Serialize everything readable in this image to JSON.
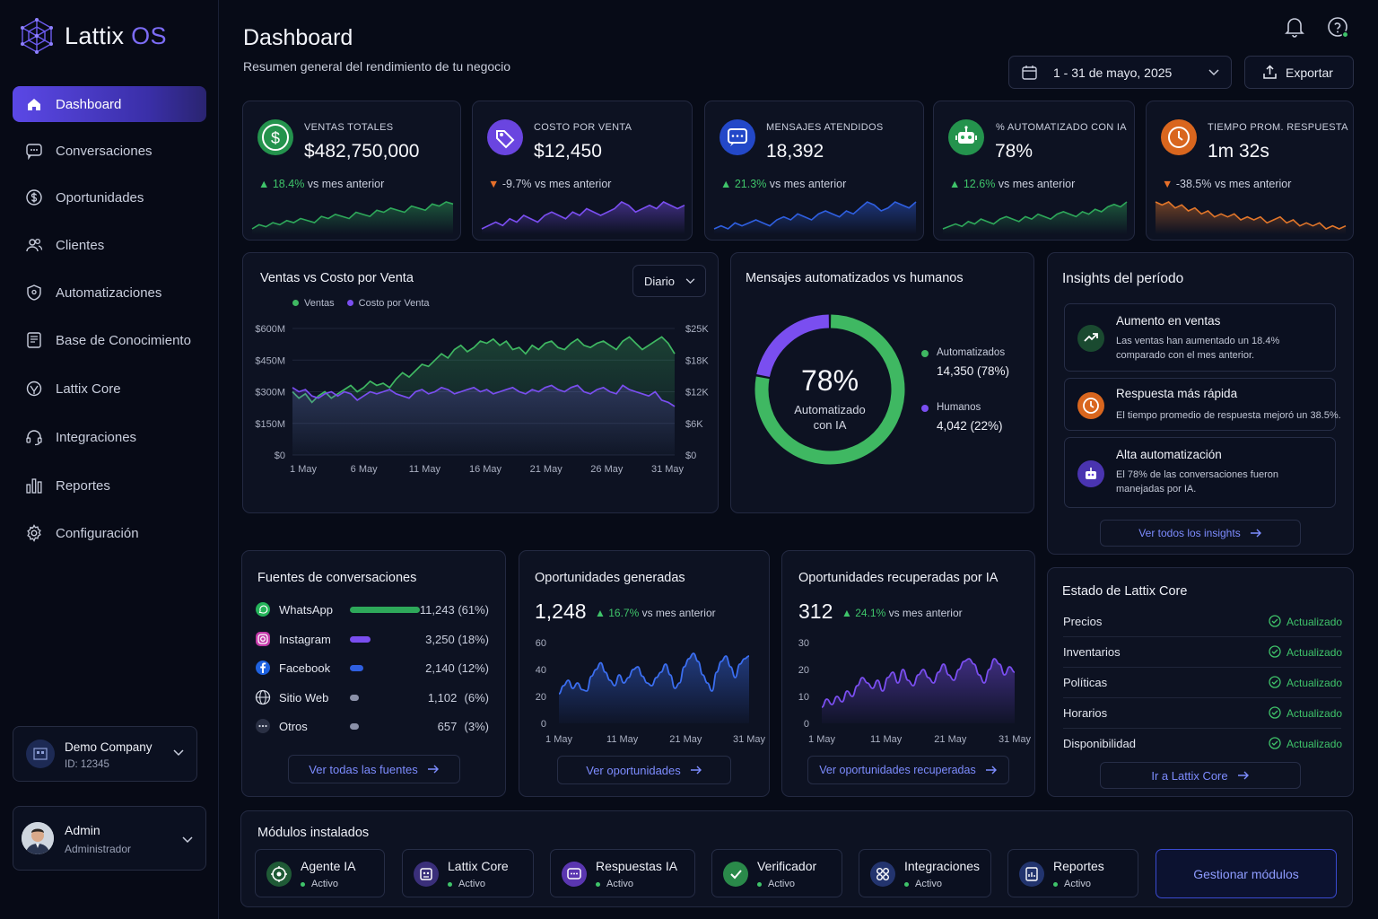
{
  "app": {
    "logo_main": "Lattix",
    "logo_accent": "OS"
  },
  "sidebar": {
    "items": [
      {
        "label": "Dashboard",
        "icon": "home-icon"
      },
      {
        "label": "Conversaciones",
        "icon": "chat-icon"
      },
      {
        "label": "Oportunidades",
        "icon": "dollar-circle-icon"
      },
      {
        "label": "Clientes",
        "icon": "users-icon"
      },
      {
        "label": "Automatizaciones",
        "icon": "shield-icon"
      },
      {
        "label": "Base de Conocimiento",
        "icon": "book-icon"
      },
      {
        "label": "Lattix Core",
        "icon": "core-icon"
      },
      {
        "label": "Integraciones",
        "icon": "headset-icon"
      },
      {
        "label": "Reportes",
        "icon": "bar-chart-icon"
      },
      {
        "label": "Configuración",
        "icon": "gear-icon"
      }
    ],
    "company": {
      "name": "Demo Company",
      "id": "ID: 12345"
    },
    "user": {
      "name": "Admin",
      "role": "Administrador"
    }
  },
  "header": {
    "title": "Dashboard",
    "subtitle": "Resumen general del rendimiento de tu negocio",
    "date_range": "1 - 31 de mayo, 2025",
    "export_label": "Exportar"
  },
  "kpis": [
    {
      "label": "VENTAS TOTALES",
      "value": "$482,750,000",
      "delta": "18.4%",
      "direction": "up",
      "suffix": "vs mes anterior",
      "color": "#2ea85a",
      "spark": [
        3,
        5,
        4,
        6,
        5,
        7,
        6,
        8,
        7,
        6,
        9,
        8,
        10,
        9,
        8,
        11,
        10,
        9,
        12,
        11,
        13,
        12,
        11,
        14,
        13,
        12,
        15,
        14,
        16,
        15
      ]
    },
    {
      "label": "COSTO POR VENTA",
      "value": "$12,450",
      "delta": "-9.7%",
      "direction": "down",
      "suffix": "vs mes anterior",
      "color": "#7a4ef0",
      "spark": [
        4,
        5,
        6,
        5,
        7,
        6,
        8,
        7,
        6,
        8,
        9,
        8,
        7,
        9,
        8,
        10,
        9,
        8,
        9,
        10,
        12,
        11,
        9,
        10,
        11,
        10,
        12,
        11,
        10,
        11
      ]
    },
    {
      "label": "MENSAJES ATENDIDOS",
      "value": "18,392",
      "delta": "21.3%",
      "direction": "up",
      "suffix": "vs mes anterior",
      "color": "#2f5fe0",
      "spark": [
        3,
        4,
        3,
        5,
        4,
        5,
        6,
        5,
        4,
        6,
        7,
        6,
        8,
        7,
        6,
        8,
        9,
        8,
        7,
        9,
        8,
        10,
        12,
        11,
        9,
        10,
        12,
        11,
        10,
        12
      ]
    },
    {
      "label": "% AUTOMATIZADO CON IA",
      "value": "78%",
      "delta": "12.6%",
      "direction": "up",
      "suffix": "vs mes anterior",
      "color": "#2ea85a",
      "spark": [
        3,
        4,
        5,
        4,
        6,
        5,
        7,
        6,
        5,
        7,
        8,
        7,
        6,
        8,
        7,
        9,
        8,
        7,
        9,
        10,
        9,
        8,
        10,
        9,
        11,
        10,
        12,
        13,
        12,
        14
      ]
    },
    {
      "label": "TIEMPO PROM. RESPUESTA",
      "value": "1m 32s",
      "delta": "-38.5%",
      "direction": "down",
      "suffix": "vs mes anterior",
      "color": "#e2762a",
      "spark": [
        14,
        13,
        14,
        12,
        13,
        11,
        12,
        10,
        11,
        9,
        10,
        9,
        10,
        8,
        9,
        8,
        9,
        7,
        8,
        9,
        7,
        8,
        6,
        7,
        6,
        7,
        5,
        6,
        5,
        6
      ]
    }
  ],
  "sales_chart": {
    "title": "Ventas vs Costo por Venta",
    "period": "Diario",
    "legend": [
      "Ventas",
      "Costo por Venta"
    ]
  },
  "messages": {
    "title": "Mensajes automatizados vs humanos",
    "center_value": "78%",
    "center_label_1": "Automatizado",
    "center_label_2": "con IA",
    "items": [
      {
        "label": "Automatizados",
        "value": "14,350 (78%)",
        "color": "#3fb862"
      },
      {
        "label": "Humanos",
        "value": "4,042 (22%)",
        "color": "#7a4ef0"
      }
    ]
  },
  "insights": {
    "title": "Insights del período",
    "items": [
      {
        "title": "Aumento en ventas",
        "text_1": "Las ventas han aumentado un 18.4%",
        "text_2": "comparado con el mes anterior.",
        "icon": "trend-up-icon",
        "color": "#2ea85a"
      },
      {
        "title": "Respuesta más rápida",
        "text_1": "El tiempo promedio de respuesta mejoró un 38.5%.",
        "text_2": "",
        "icon": "clock-icon",
        "color": "#e2762a"
      },
      {
        "title": "Alta automatización",
        "text_1": "El 78% de las conversaciones fueron",
        "text_2": "manejadas por IA.",
        "icon": "robot-icon",
        "color": "#6a45e0"
      }
    ],
    "link": "Ver todos los insights"
  },
  "sources": {
    "title": "Fuentes de conversaciones",
    "items": [
      {
        "name": "WhatsApp",
        "value": "11,243",
        "pct": "(61%)",
        "share": 0.61,
        "color": "#2ea85a",
        "icon": "whatsapp-icon"
      },
      {
        "name": "Instagram",
        "value": "3,250",
        "pct": "(18%)",
        "share": 0.18,
        "color": "#7a4ef0",
        "icon": "instagram-icon"
      },
      {
        "name": "Facebook",
        "value": "2,140",
        "pct": "(12%)",
        "share": 0.12,
        "color": "#2f5fe0",
        "icon": "facebook-icon"
      },
      {
        "name": "Sitio Web",
        "value": "1,102",
        "pct": "(6%)",
        "share": 0.06,
        "color": "#8a90a8",
        "icon": "globe-icon"
      },
      {
        "name": "Otros",
        "value": "657",
        "pct": "(3%)",
        "share": 0.03,
        "color": "#8a90a8",
        "icon": "more-icon"
      }
    ],
    "link": "Ver todas las fuentes"
  },
  "opps": {
    "title": "Oportunidades generadas",
    "value": "1,248",
    "delta": "16.7%",
    "suffix": "vs mes anterior",
    "link": "Ver oportunidades"
  },
  "recovered": {
    "title": "Oportunidades recuperadas por IA",
    "value": "312",
    "delta": "24.1%",
    "suffix": "vs mes anterior",
    "link": "Ver oportunidades recuperadas"
  },
  "core_status": {
    "title": "Estado de Lattix Core",
    "items": [
      {
        "name": "Precios",
        "status": "Actualizado"
      },
      {
        "name": "Inventarios",
        "status": "Actualizado"
      },
      {
        "name": "Políticas",
        "status": "Actualizado"
      },
      {
        "name": "Horarios",
        "status": "Actualizado"
      },
      {
        "name": "Disponibilidad",
        "status": "Actualizado"
      }
    ],
    "link": "Ir a Lattix Core"
  },
  "modules": {
    "title": "Módulos instalados",
    "items": [
      {
        "name": "Agente IA",
        "status": "Activo",
        "icon": "brain-icon",
        "color": "#1f5a36"
      },
      {
        "name": "Lattix Core",
        "status": "Activo",
        "icon": "cpu-icon",
        "color": "#3a2f7a"
      },
      {
        "name": "Respuestas IA",
        "status": "Activo",
        "icon": "message-icon",
        "color": "#5a36b0"
      },
      {
        "name": "Verificador",
        "status": "Activo",
        "icon": "check-icon",
        "color": "#2a8a4a"
      },
      {
        "name": "Integraciones",
        "status": "Activo",
        "icon": "grid-icon",
        "color": "#23346e"
      },
      {
        "name": "Reportes",
        "status": "Activo",
        "icon": "report-icon",
        "color": "#22346e"
      }
    ],
    "manage_label": "Gestionar módulos"
  },
  "chart_data": [
    {
      "type": "line",
      "title": "Ventas vs Costo por Venta",
      "x_ticks": [
        "1 May",
        "6 May",
        "11 May",
        "16 May",
        "21 May",
        "26 May",
        "31 May"
      ],
      "y_left_ticks": [
        "$0",
        "$150M",
        "$300M",
        "$450M",
        "$600M"
      ],
      "y_right_ticks": [
        "$0",
        "$6K",
        "$12K",
        "$18K",
        "$25K"
      ],
      "ylim_left": [
        0,
        600
      ],
      "series": [
        {
          "name": "Ventas",
          "color": "#3fb862",
          "values": [
            300,
            270,
            290,
            250,
            280,
            300,
            270,
            290,
            310,
            330,
            300,
            320,
            350,
            330,
            340,
            320,
            360,
            390,
            370,
            400,
            430,
            420,
            450,
            480,
            460,
            500,
            520,
            490,
            510,
            540,
            530,
            550,
            520,
            540,
            500,
            510,
            480,
            520,
            500,
            530,
            540,
            510,
            500,
            530,
            550,
            520,
            510,
            530,
            540,
            520,
            500,
            540,
            560,
            530,
            500,
            520,
            540,
            560,
            530,
            480
          ]
        },
        {
          "name": "Costo por Venta",
          "color": "#7a4ef0",
          "values": [
            320,
            300,
            310,
            280,
            270,
            290,
            300,
            280,
            300,
            290,
            260,
            280,
            300,
            290,
            300,
            310,
            290,
            280,
            270,
            300,
            310,
            290,
            300,
            320,
            310,
            290,
            300,
            310,
            320,
            300,
            310,
            290,
            300,
            310,
            320,
            300,
            290,
            310,
            300,
            320,
            330,
            310,
            300,
            320,
            330,
            300,
            290,
            310,
            320,
            300,
            290,
            330,
            310,
            300,
            290,
            280,
            300,
            260,
            250,
            230
          ]
        }
      ]
    },
    {
      "type": "pie",
      "title": "Mensajes automatizados vs humanos",
      "categories": [
        "Automatizados",
        "Humanos"
      ],
      "values": [
        14350,
        4042
      ]
    },
    {
      "type": "area",
      "title": "Oportunidades generadas",
      "x_ticks": [
        "1 May",
        "11 May",
        "21 May",
        "31 May"
      ],
      "y_ticks": [
        "0",
        "20",
        "40",
        "60"
      ],
      "ylim": [
        0,
        60
      ],
      "values": [
        22,
        28,
        32,
        26,
        30,
        25,
        24,
        35,
        40,
        45,
        38,
        32,
        28,
        36,
        30,
        34,
        40,
        42,
        35,
        30,
        28,
        34,
        38,
        44,
        36,
        26,
        30,
        42,
        48,
        52,
        46,
        36,
        30,
        24,
        38,
        46,
        50,
        42,
        34,
        44,
        48,
        50
      ]
    },
    {
      "type": "area",
      "title": "Oportunidades recuperadas por IA",
      "x_ticks": [
        "1 May",
        "11 May",
        "21 May",
        "31 May"
      ],
      "y_ticks": [
        "0",
        "10",
        "20",
        "30"
      ],
      "ylim": [
        0,
        30
      ],
      "values": [
        6,
        9,
        7,
        10,
        8,
        12,
        10,
        14,
        17,
        15,
        13,
        16,
        12,
        17,
        19,
        15,
        20,
        16,
        14,
        18,
        20,
        17,
        15,
        19,
        22,
        18,
        16,
        20,
        23,
        24,
        22,
        18,
        15,
        20,
        24,
        22,
        18,
        21,
        19
      ]
    }
  ]
}
